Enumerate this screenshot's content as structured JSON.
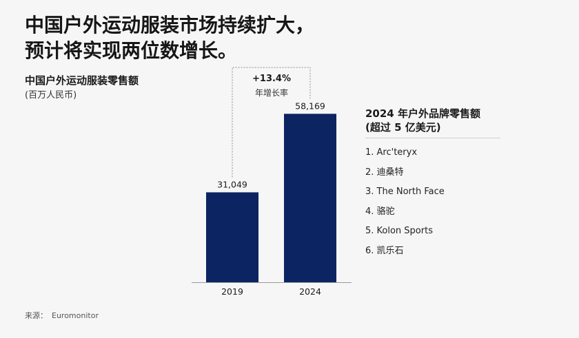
{
  "headline": {
    "line1": "中国户外运动服装市场持续扩大，",
    "line2": "预计将实现两位数增长。"
  },
  "chart_data": {
    "type": "bar",
    "title": "中国户外运动服装零售额",
    "subtitle": "(百万人民币)",
    "categories": [
      "2019",
      "2024"
    ],
    "values": [
      31049,
      58169
    ],
    "value_labels": [
      "31,049",
      "58,169"
    ],
    "ylim": [
      0,
      63000
    ],
    "xlabel": "",
    "ylabel": "",
    "grid": false,
    "bar_color": "#0c2461",
    "annotation": {
      "value": "+13.4%",
      "label": "年增长率"
    }
  },
  "brands": {
    "title_line1": "2024 年户外品牌零售额",
    "title_line2": "(超过 5 亿美元)",
    "items": [
      "1. Arc'teryx",
      "2. 迪桑特",
      "3. The North Face",
      "4. 骆驼",
      "5. Kolon Sports",
      "6. 凯乐石"
    ]
  },
  "source": {
    "label": "来源：",
    "name": "Euromonitor"
  }
}
